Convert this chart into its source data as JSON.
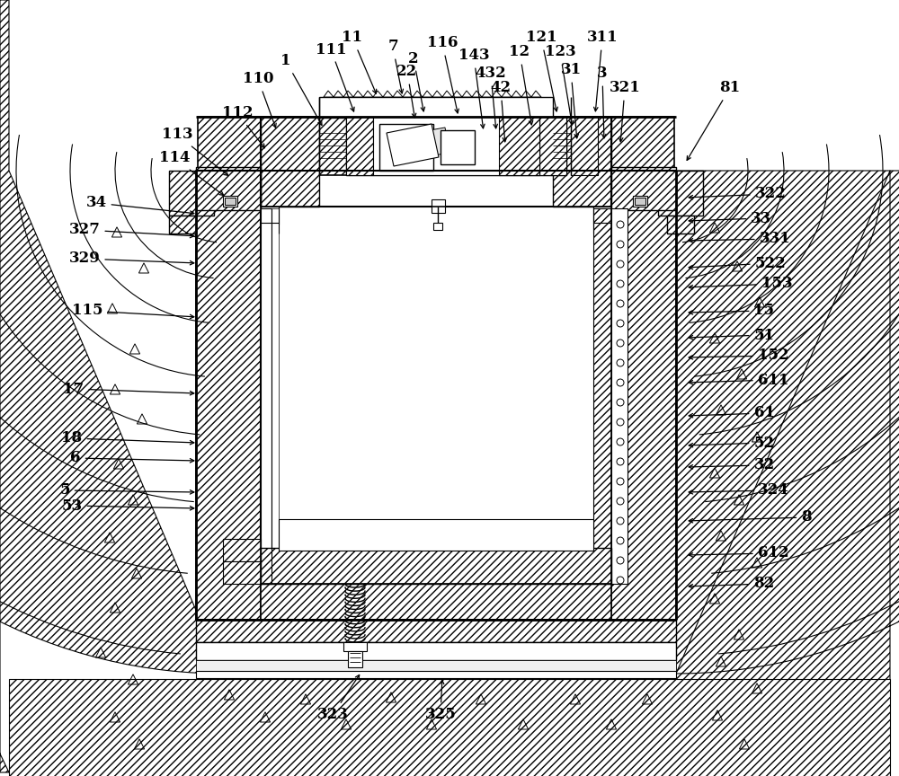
{
  "bg_color": "#ffffff",
  "figsize": [
    10.0,
    8.64
  ],
  "labels_data": [
    [
      "1",
      318,
      68,
      360,
      143
    ],
    [
      "11",
      392,
      42,
      420,
      108
    ],
    [
      "111",
      368,
      55,
      395,
      128
    ],
    [
      "7",
      437,
      52,
      448,
      108
    ],
    [
      "2",
      460,
      65,
      472,
      128
    ],
    [
      "22",
      453,
      80,
      462,
      135
    ],
    [
      "116",
      492,
      48,
      510,
      130
    ],
    [
      "143",
      527,
      62,
      538,
      147
    ],
    [
      "432",
      546,
      82,
      552,
      147
    ],
    [
      "12",
      578,
      58,
      592,
      143
    ],
    [
      "121",
      602,
      42,
      620,
      128
    ],
    [
      "123",
      623,
      58,
      637,
      143
    ],
    [
      "311",
      670,
      42,
      662,
      128
    ],
    [
      "42",
      557,
      98,
      562,
      162
    ],
    [
      "31",
      635,
      78,
      642,
      158
    ],
    [
      "3",
      670,
      82,
      672,
      158
    ],
    [
      "321",
      695,
      98,
      690,
      162
    ],
    [
      "81",
      812,
      98,
      762,
      182
    ],
    [
      "110",
      287,
      88,
      308,
      146
    ],
    [
      "113",
      197,
      150,
      257,
      198
    ],
    [
      "112",
      264,
      126,
      297,
      168
    ],
    [
      "114",
      194,
      176,
      252,
      220
    ],
    [
      "34",
      107,
      226,
      220,
      238
    ],
    [
      "327",
      94,
      256,
      220,
      263
    ],
    [
      "329",
      94,
      288,
      220,
      293
    ],
    [
      "115",
      97,
      346,
      220,
      353
    ],
    [
      "17",
      82,
      433,
      220,
      438
    ],
    [
      "18",
      80,
      488,
      220,
      493
    ],
    [
      "6",
      84,
      510,
      220,
      513
    ],
    [
      "5",
      72,
      546,
      220,
      548
    ],
    [
      "53",
      80,
      563,
      220,
      566
    ],
    [
      "322",
      857,
      216,
      762,
      220
    ],
    [
      "33",
      847,
      243,
      762,
      246
    ],
    [
      "331",
      862,
      266,
      762,
      268
    ],
    [
      "522",
      857,
      293,
      762,
      298
    ],
    [
      "153",
      864,
      316,
      762,
      320
    ],
    [
      "15",
      850,
      346,
      762,
      348
    ],
    [
      "51",
      850,
      373,
      762,
      376
    ],
    [
      "152",
      860,
      396,
      762,
      398
    ],
    [
      "611",
      860,
      423,
      762,
      426
    ],
    [
      "61",
      850,
      460,
      762,
      463
    ],
    [
      "52",
      850,
      493,
      762,
      496
    ],
    [
      "32",
      850,
      518,
      762,
      520
    ],
    [
      "324",
      860,
      546,
      762,
      548
    ],
    [
      "8",
      897,
      576,
      762,
      580
    ],
    [
      "612",
      860,
      616,
      762,
      618
    ],
    [
      "82",
      850,
      650,
      762,
      653
    ],
    [
      "323",
      370,
      796,
      402,
      748
    ],
    [
      "325",
      490,
      796,
      492,
      753
    ]
  ]
}
